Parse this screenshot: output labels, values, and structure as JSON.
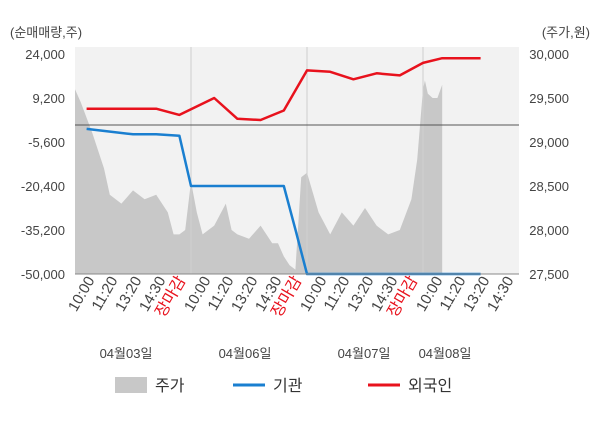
{
  "chart_data": {
    "type": "line",
    "left_unit_label": "(순매매량,주)",
    "right_unit_label": "(주가,원)",
    "left_ticks": [
      "24,000",
      "9,200",
      "-5,600",
      "-20,400",
      "-35,200",
      "-50,000"
    ],
    "left_range": [
      -50000,
      24000
    ],
    "right_ticks": [
      "30,000",
      "29,500",
      "29,000",
      "28,500",
      "28,000",
      "27,500"
    ],
    "right_range": [
      27500,
      30000
    ],
    "x_labels": [
      {
        "text": "10:00",
        "kind": "time"
      },
      {
        "text": "11:20",
        "kind": "time"
      },
      {
        "text": "13:20",
        "kind": "time"
      },
      {
        "text": "14:30",
        "kind": "time"
      },
      {
        "text": "장마감",
        "kind": "close"
      },
      {
        "text": "10:00",
        "kind": "time"
      },
      {
        "text": "11:20",
        "kind": "time"
      },
      {
        "text": "13:20",
        "kind": "time"
      },
      {
        "text": "14:30",
        "kind": "time"
      },
      {
        "text": "장마감",
        "kind": "close"
      },
      {
        "text": "10:00",
        "kind": "time"
      },
      {
        "text": "11:20",
        "kind": "time"
      },
      {
        "text": "13:20",
        "kind": "time"
      },
      {
        "text": "14:30",
        "kind": "time"
      },
      {
        "text": "장마감",
        "kind": "close"
      },
      {
        "text": "10:00",
        "kind": "time"
      },
      {
        "text": "11:20",
        "kind": "time"
      },
      {
        "text": "13:20",
        "kind": "time"
      },
      {
        "text": "14:30",
        "kind": "time"
      }
    ],
    "dates": [
      "04월03일",
      "04월06일",
      "04월07일",
      "04월08일"
    ],
    "legend": [
      "주가",
      "기관",
      "외국인"
    ],
    "colors": {
      "price": "#c8c8c8",
      "institution": "#1a7fd0",
      "foreign": "#e8121d",
      "close_label": "#e8121d",
      "axis_text": "#444444",
      "grid": "#dddddd"
    },
    "series": [
      {
        "name": "외국인",
        "axis": "left",
        "x": [
          0.1,
          0.5,
          0.7,
          0.9,
          1.2,
          1.4,
          1.6,
          1.8,
          2.0,
          2.2,
          2.4,
          2.6,
          2.8,
          3.0,
          3.2,
          3.4,
          3.6
        ],
        "values": [
          5600,
          5600,
          5600,
          3500,
          9200,
          2200,
          1800,
          5000,
          18500,
          18000,
          15500,
          17500,
          16800,
          21000,
          22600,
          22600,
          22600
        ]
      },
      {
        "name": "기관",
        "axis": "left",
        "x": [
          0.1,
          0.5,
          0.7,
          0.9,
          1.0,
          1.8,
          1.9,
          2.0,
          2.8,
          3.0,
          3.2,
          3.4,
          3.6
        ],
        "values": [
          -1200,
          -3000,
          -3000,
          -3500,
          -20400,
          -20400,
          -35000,
          -50000,
          -50000,
          -50000,
          -50000,
          -50000,
          -50000
        ]
      },
      {
        "name": "주가",
        "axis": "right",
        "x": [
          0.0,
          0.05,
          0.15,
          0.25,
          0.3,
          0.4,
          0.5,
          0.6,
          0.7,
          0.8,
          0.85,
          0.9,
          0.95,
          1.0,
          1.05,
          1.1,
          1.2,
          1.3,
          1.35,
          1.4,
          1.5,
          1.6,
          1.7,
          1.75,
          1.8,
          1.85,
          1.9,
          1.95,
          2.0,
          2.1,
          2.2,
          2.3,
          2.4,
          2.5,
          2.6,
          2.7,
          2.8,
          2.9,
          2.95,
          3.0,
          3.02,
          3.05,
          3.1,
          3.15,
          3.2
        ],
        "values": [
          29600,
          29450,
          29100,
          28700,
          28400,
          28300,
          28450,
          28350,
          28400,
          28200,
          27950,
          27950,
          28000,
          28550,
          28200,
          27950,
          28050,
          28300,
          28000,
          27950,
          27900,
          28050,
          27850,
          27850,
          27700,
          27600,
          27550,
          28600,
          28650,
          28200,
          27950,
          28200,
          28050,
          28250,
          28050,
          27950,
          28000,
          28350,
          28800,
          29600,
          29700,
          29550,
          29500,
          29500,
          29650
        ]
      }
    ],
    "grid": false
  }
}
